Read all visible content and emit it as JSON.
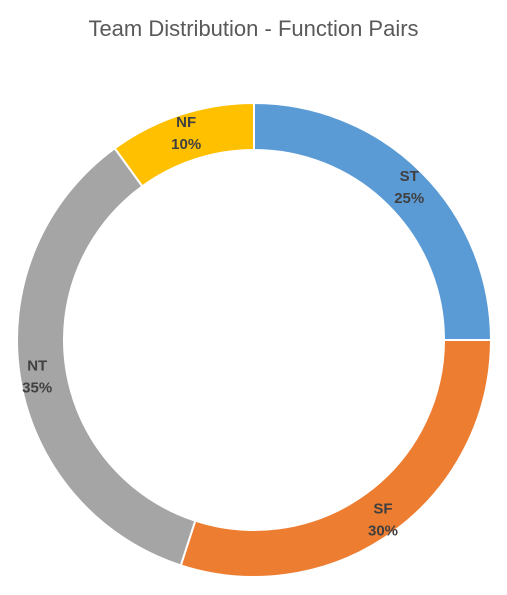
{
  "chart_data": {
    "type": "pie",
    "title": "Team Distribution - Function Pairs",
    "donut": true,
    "start": "12 o'clock, clockwise",
    "slices": [
      {
        "label": "ST",
        "value": 25,
        "display": "25%",
        "color": "#5B9BD5"
      },
      {
        "label": "SF",
        "value": 30,
        "display": "30%",
        "color": "#ED7D31"
      },
      {
        "label": "NT",
        "value": 35,
        "display": "35%",
        "color": "#A5A5A5"
      },
      {
        "label": "NF",
        "value": 10,
        "display": "10%",
        "color": "#FFC000"
      }
    ]
  }
}
